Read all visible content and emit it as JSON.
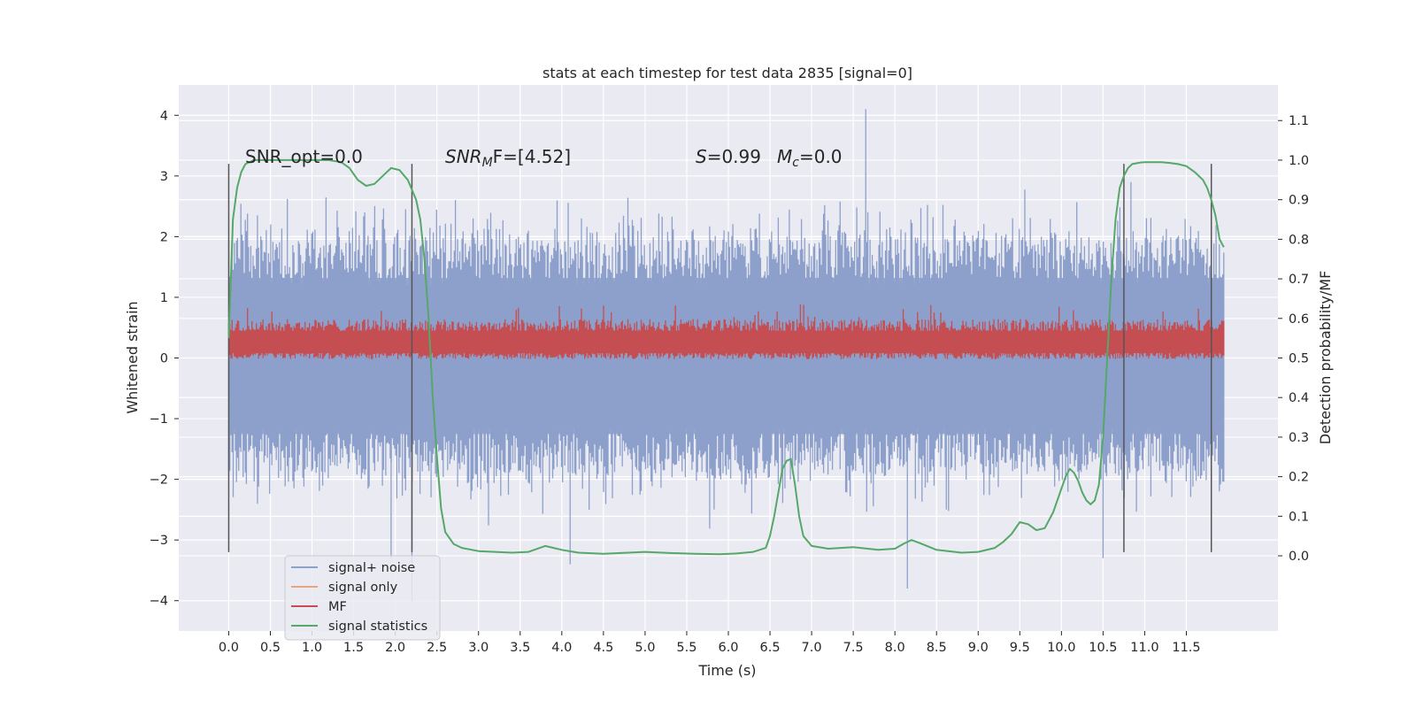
{
  "chart_data": {
    "type": "line",
    "title": "stats at each timestep for test data 2835 [signal=0]",
    "xlabel": "Time (s)",
    "ylabel": "Whitened strain",
    "y2label": "Detection probability/MF",
    "xlim": [
      -0.6,
      12.6
    ],
    "ylim": [
      -4.5,
      4.5
    ],
    "y2lim": [
      -0.19,
      1.19
    ],
    "x_ticks": [
      "0.0",
      "0.5",
      "1.0",
      "1.5",
      "2.0",
      "2.5",
      "3.0",
      "3.5",
      "4.0",
      "4.5",
      "5.0",
      "5.5",
      "6.0",
      "6.5",
      "7.0",
      "7.5",
      "8.0",
      "8.5",
      "9.0",
      "9.5",
      "10.0",
      "10.5",
      "11.0",
      "11.5"
    ],
    "y_ticks": [
      "4",
      "3",
      "2",
      "1",
      "0",
      "−1",
      "−2",
      "−3",
      "−4"
    ],
    "y2_ticks": [
      "1.1",
      "1.0",
      "0.9",
      "0.8",
      "0.7",
      "0.6",
      "0.5",
      "0.4",
      "0.3",
      "0.2",
      "0.1",
      "0.0"
    ],
    "grid": true,
    "legend_position": "lower-left",
    "annotations": {
      "snr_opt": "SNR_opt=0.0",
      "snr_mf_name": "SNR",
      "snr_mf_sub": "M",
      "snr_mf_tail": "F=[4.52]",
      "s_name": "S",
      "s_value": "=0.99",
      "mc_name": "M",
      "mc_sub": "c",
      "mc_value": "=0.0"
    },
    "vertical_lines": [
      0.0,
      2.2,
      10.75,
      11.8
    ],
    "vertical_line_range": [
      -3.2,
      3.2
    ],
    "series": [
      {
        "name": "signal+ noise",
        "color": "#8da0cb",
        "x_range": [
          0.0,
          11.95
        ],
        "band_lower": -1.9,
        "band_upper": 2.0,
        "max": 4.1,
        "min": -4.0
      },
      {
        "name": "signal only",
        "color": "#e8a583"
      },
      {
        "name": "MF",
        "color": "#c44e52",
        "x_range": [
          0.0,
          11.95
        ],
        "band_lower": 0.0,
        "band_upper": 0.6,
        "max": 1.0
      },
      {
        "name": "signal statistics",
        "color": "#55a868",
        "axis": "y2",
        "x": [
          0.0,
          0.05,
          0.1,
          0.15,
          0.2,
          0.3,
          0.5,
          0.8,
          1.0,
          1.2,
          1.35,
          1.45,
          1.55,
          1.65,
          1.75,
          1.85,
          1.95,
          2.05,
          2.15,
          2.25,
          2.3,
          2.35,
          2.4,
          2.45,
          2.5,
          2.55,
          2.6,
          2.7,
          2.8,
          3.0,
          3.2,
          3.4,
          3.6,
          3.8,
          4.0,
          4.2,
          4.5,
          4.8,
          5.0,
          5.3,
          5.6,
          5.9,
          6.1,
          6.3,
          6.45,
          6.5,
          6.55,
          6.6,
          6.65,
          6.7,
          6.75,
          6.8,
          6.85,
          6.9,
          7.0,
          7.2,
          7.5,
          7.8,
          8.0,
          8.1,
          8.2,
          8.3,
          8.5,
          8.8,
          9.0,
          9.2,
          9.3,
          9.4,
          9.5,
          9.6,
          9.7,
          9.8,
          9.9,
          10.0,
          10.05,
          10.1,
          10.15,
          10.2,
          10.25,
          10.3,
          10.35,
          10.4,
          10.45,
          10.5,
          10.55,
          10.6,
          10.65,
          10.7,
          10.75,
          10.8,
          10.85,
          10.9,
          10.95,
          11.0,
          11.1,
          11.2,
          11.3,
          11.4,
          11.5,
          11.6,
          11.7,
          11.75,
          11.8,
          11.85,
          11.9,
          11.95
        ],
        "values": [
          0.55,
          0.85,
          0.93,
          0.97,
          0.99,
          1.0,
          1.0,
          1.0,
          1.0,
          1.0,
          0.995,
          0.98,
          0.95,
          0.935,
          0.94,
          0.96,
          0.98,
          0.975,
          0.95,
          0.9,
          0.85,
          0.75,
          0.6,
          0.4,
          0.25,
          0.12,
          0.06,
          0.03,
          0.02,
          0.012,
          0.01,
          0.008,
          0.01,
          0.025,
          0.015,
          0.008,
          0.005,
          0.008,
          0.01,
          0.007,
          0.005,
          0.004,
          0.006,
          0.01,
          0.02,
          0.05,
          0.1,
          0.16,
          0.22,
          0.24,
          0.245,
          0.18,
          0.1,
          0.05,
          0.025,
          0.018,
          0.022,
          0.015,
          0.018,
          0.03,
          0.04,
          0.032,
          0.015,
          0.008,
          0.01,
          0.02,
          0.035,
          0.055,
          0.085,
          0.08,
          0.065,
          0.07,
          0.11,
          0.17,
          0.2,
          0.22,
          0.21,
          0.19,
          0.16,
          0.14,
          0.13,
          0.14,
          0.18,
          0.3,
          0.5,
          0.7,
          0.85,
          0.93,
          0.96,
          0.98,
          0.99,
          0.992,
          0.994,
          0.995,
          0.995,
          0.995,
          0.993,
          0.99,
          0.985,
          0.97,
          0.95,
          0.93,
          0.9,
          0.86,
          0.8,
          0.78
        ]
      }
    ]
  }
}
